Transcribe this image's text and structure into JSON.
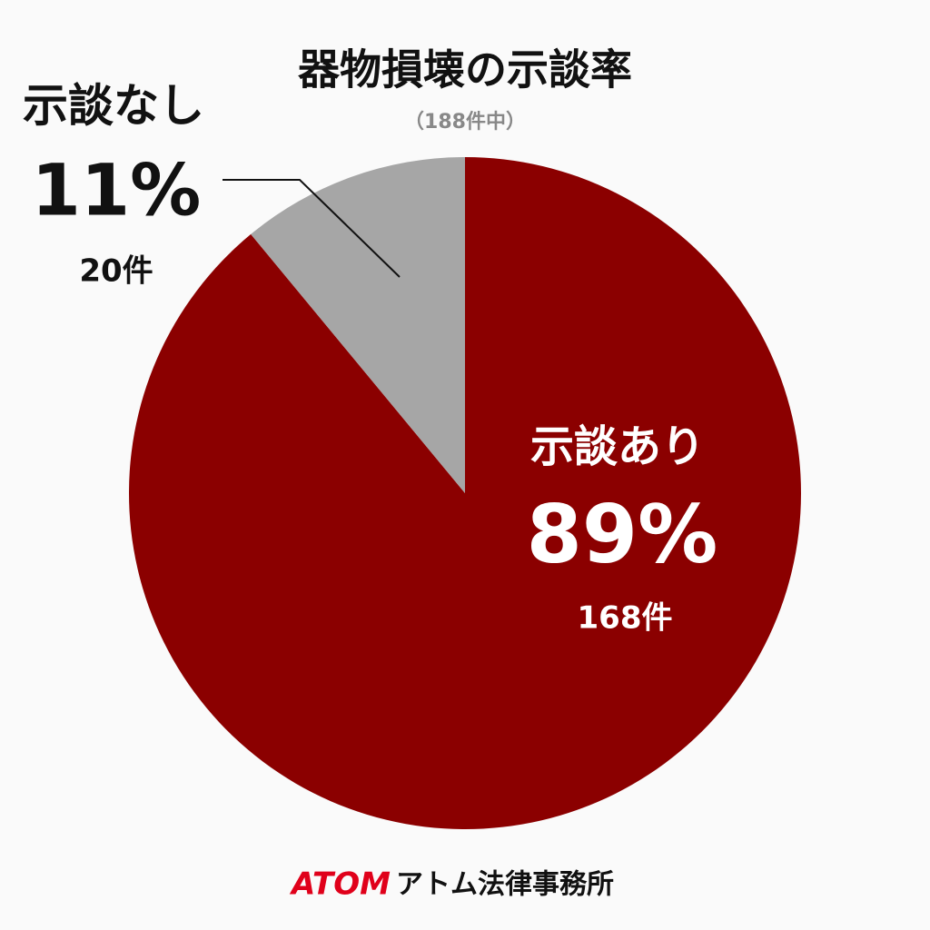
{
  "chart_data": {
    "type": "pie",
    "title": "器物損壊の示談率",
    "subtitle": "（188件中）",
    "categories": [
      "示談あり",
      "示談なし"
    ],
    "values": [
      89,
      11
    ],
    "value_labels": [
      "89%",
      "11%"
    ],
    "count_labels": [
      "168件",
      "20件"
    ],
    "colors": [
      "#8b0000",
      "#a6a6a6"
    ],
    "footer_brand": "ATOM",
    "footer_name": "アトム法律事務所"
  }
}
